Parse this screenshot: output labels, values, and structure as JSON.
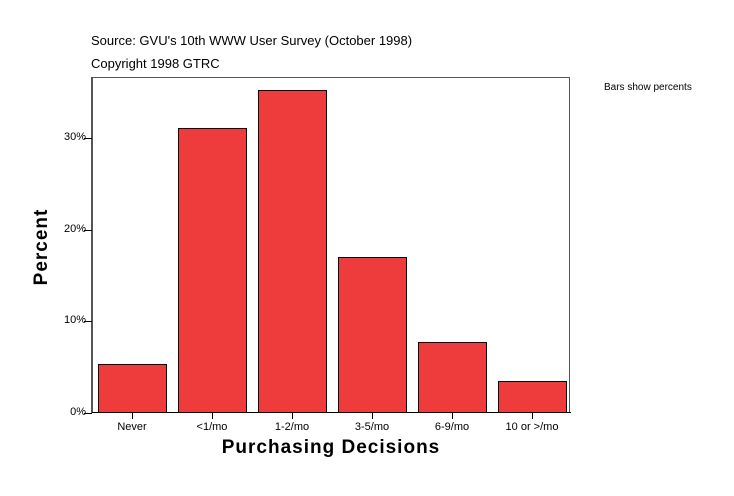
{
  "header": {
    "source": "Source: GVU's 10th WWW User Survey (October 1998)",
    "copyright": "Copyright 1998 GTRC"
  },
  "note": "Bars show percents",
  "colors": {
    "bar": "#ee3b3b",
    "bar_border": "#000000"
  },
  "chart_data": {
    "type": "bar",
    "title": "Source: GVU's 10th WWW User Survey (October 1998)",
    "subtitle": "Copyright 1998 GTRC",
    "xlabel": "Purchasing Decisions",
    "ylabel": "Percent",
    "categories": [
      "Never",
      "<1/mo",
      "1-2/mo",
      "3-5/mo",
      "6-9/mo",
      "10 or >/mo"
    ],
    "values": [
      5.3,
      31.1,
      35.2,
      17.0,
      7.7,
      3.5
    ],
    "unit": "%",
    "yticks": [
      "0%",
      "10%",
      "20%",
      "30%"
    ],
    "ylim": [
      0,
      36.6
    ],
    "grid": false,
    "annotation": "Bars show percents"
  }
}
